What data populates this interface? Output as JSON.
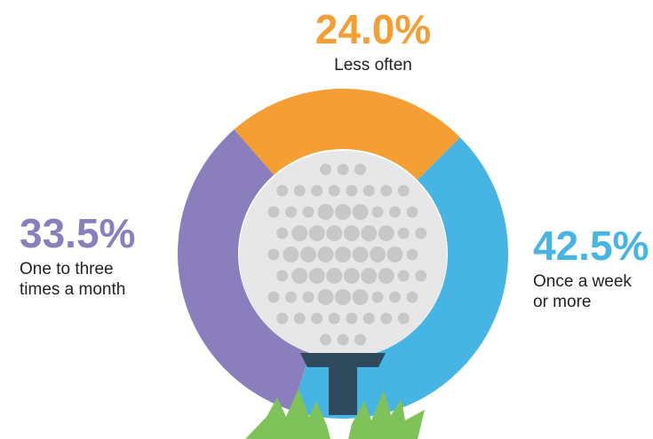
{
  "chart_data": {
    "type": "donut",
    "categories": [
      "Less often",
      "Once a week or more",
      "One to three times a month"
    ],
    "values": [
      24.0,
      42.5,
      33.5
    ],
    "value_labels": [
      "24.0%",
      "42.5%",
      "33.5%"
    ],
    "colors": [
      "#f59e33",
      "#47b5e4",
      "#8a7fbc"
    ]
  }
}
